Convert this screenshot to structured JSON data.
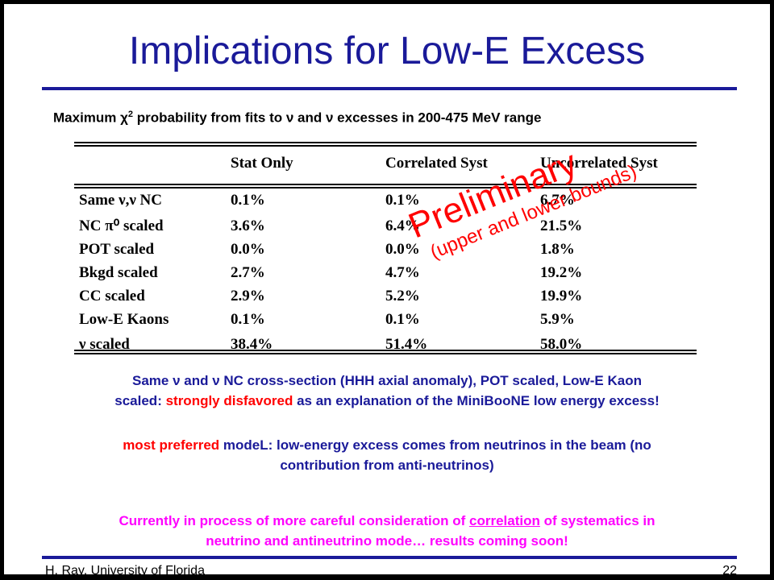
{
  "title": "Implications for Low-E Excess",
  "subtitle": {
    "text_pre": "Maximum χ",
    "sup": "2",
    "text_post": " probability from fits to ν and ν excesses in 200-475 MeV range"
  },
  "table": {
    "headers": [
      "",
      "Stat Only",
      "Correlated Syst",
      "Uncorrelated Syst"
    ],
    "rows": [
      {
        "label": "Same ν,ν NC",
        "stat": "0.1%",
        "corr": "0.1%",
        "uncorr": "6.7%"
      },
      {
        "label": "NC π⁰ scaled",
        "stat": "3.6%",
        "corr": "6.4%",
        "uncorr": "21.5%"
      },
      {
        "label": "POT scaled",
        "stat": "0.0%",
        "corr": "0.0%",
        "uncorr": "1.8%"
      },
      {
        "label": "Bkgd scaled",
        "stat": "2.7%",
        "corr": "4.7%",
        "uncorr": "19.2%"
      },
      {
        "label": "CC scaled",
        "stat": "2.9%",
        "corr": "5.2%",
        "uncorr": "19.9%"
      },
      {
        "label": "Low-E Kaons",
        "stat": "0.1%",
        "corr": "0.1%",
        "uncorr": "5.9%"
      },
      {
        "label": "ν scaled",
        "stat": "38.4%",
        "corr": "51.4%",
        "uncorr": "58.0%"
      }
    ]
  },
  "stamp": {
    "main": "Preliminary",
    "sub": "(upper and lower bounds)"
  },
  "para1": {
    "line1": "Same ν and ν NC cross-section (HHH axial anomaly), POT scaled, Low-E Kaon",
    "line2_pre": "scaled: ",
    "line2_red": "strongly disfavored",
    "line2_post": " as an explanation of the MiniBooNE low energy excess!"
  },
  "para2": {
    "red": "most preferred",
    "line1_post": " modeL: low-energy excess comes from neutrinos in the beam (no",
    "line2": "contribution from anti-neutrinos)"
  },
  "para3": {
    "line1_pre": "Currently in process of more careful consideration of ",
    "line1_under": "correlation",
    "line1_post": " of systematics in",
    "line2": "neutrino and antineutrino mode… results coming soon!"
  },
  "footer": {
    "left": "H. Ray, University of Florida",
    "right": "22"
  },
  "colors": {
    "title": "#1a1a99",
    "accent_red": "#ff0000",
    "magenta": "#ff00ff"
  }
}
